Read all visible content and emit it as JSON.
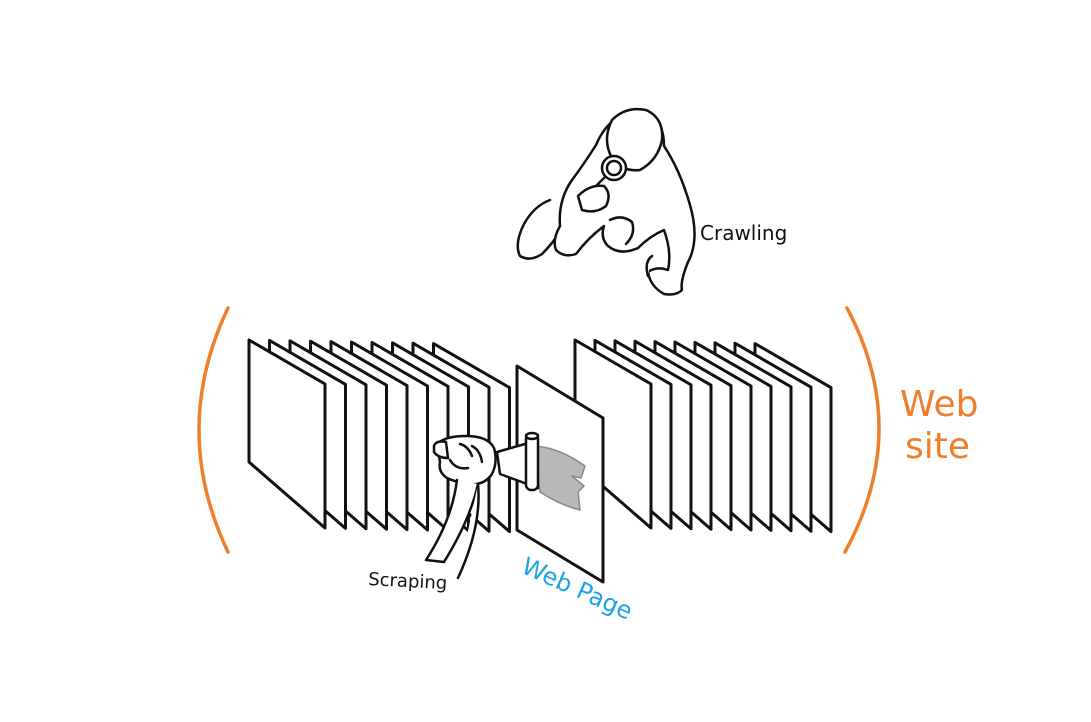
{
  "labels": {
    "crawling": "Crawling",
    "scraping": "Scraping",
    "web_page": "Web Page",
    "web_site_line1": "Web",
    "web_site_line2": "site"
  },
  "colors": {
    "ink": "#111111",
    "orange": "#f07f2a",
    "blue": "#1ba3e6",
    "grey_sheet": "#b9b9b9"
  },
  "icons": {
    "crawler": "crawling-person-with-magnifier-icon",
    "hand": "hand-scraping-icon"
  }
}
